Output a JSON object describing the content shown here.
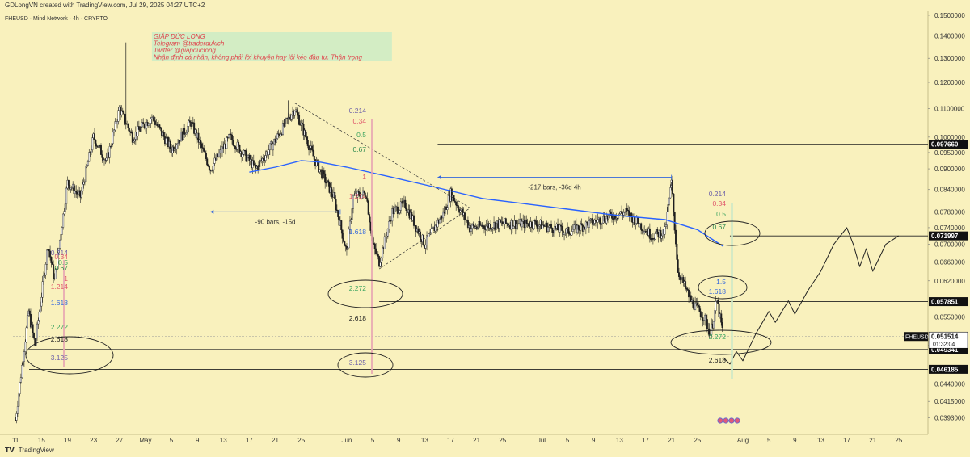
{
  "header": {
    "attribution": "GDLongVN created with TradingView.com, Jul 29, 2025 04:27 UTC+2",
    "symbol_line": "FHEUSD · Mind Network · 4h · CRYPTO"
  },
  "footer": {
    "brand": "TradingView"
  },
  "colors": {
    "background": "#f9f1bd",
    "candle_up": "#1f1f1f",
    "candle_down": "#1f1f1f",
    "ma_line": "#2962ff",
    "fib_red": "#e0576b",
    "fib_green": "#3aa35f",
    "fib_blue": "#3366dd",
    "price_tag_bg": "#111111",
    "price_tag_text": "#ffffff"
  },
  "annotation_box": {
    "lines": [
      "GIÁP ĐỨC LONG",
      "Telegram @traderdukich",
      "Twitter @giapduclong",
      "Nhận định cá nhân, không phải lời khuyên hay lôi kéo đầu tư. Thận trọng"
    ]
  },
  "measure_labels": {
    "first": "-90 bars, -15d",
    "second": "-217 bars, -36d 4h"
  },
  "fib_groups": [
    {
      "id": "left",
      "labels": [
        "0.214",
        "0.34",
        "0.5",
        "0.67",
        "1",
        "1.214",
        "1.618",
        "2.272",
        "2.618",
        "3.125"
      ]
    },
    {
      "id": "middle",
      "labels": [
        "0.214",
        "0.34",
        "0.5",
        "0.67",
        "1",
        "1.214",
        "1.618",
        "2.272",
        "2.618",
        "3.125"
      ]
    },
    {
      "id": "right",
      "labels": [
        "0.214",
        "0.34",
        "0.5",
        "0.67",
        "1.5",
        "1.618",
        "2.272",
        "2.618"
      ]
    }
  ],
  "chart_data": {
    "type": "candlestick",
    "symbol": "FHEUSD",
    "exchange": "Mind Network",
    "timeframe": "4h",
    "x_ticks": [
      "11",
      "15",
      "19",
      "23",
      "27",
      "May",
      "5",
      "9",
      "13",
      "17",
      "21",
      "25",
      "Jun",
      "5",
      "9",
      "13",
      "17",
      "21",
      "25",
      "Jul",
      "5",
      "9",
      "13",
      "17",
      "21",
      "25",
      "Aug",
      "5",
      "9",
      "13",
      "17",
      "21",
      "25"
    ],
    "y_ticks": [
      0.15,
      0.14,
      0.13,
      0.12,
      0.11,
      0.1,
      0.095,
      0.09,
      0.084,
      0.078,
      0.074,
      0.07,
      0.066,
      0.062,
      0.055,
      0.05,
      0.044,
      0.0415,
      0.0393
    ],
    "y_range": [
      0.038,
      0.152
    ],
    "scale": "log",
    "price_levels": [
      {
        "value": 0.09766,
        "label": "0.097660"
      },
      {
        "value": 0.071997,
        "label": "0.071997"
      },
      {
        "value": 0.057851,
        "label": "0.057851"
      },
      {
        "value": 0.049341,
        "label": "0.049341"
      },
      {
        "value": 0.046185,
        "label": "0.046185"
      }
    ],
    "current": {
      "symbol": "FHEUSD",
      "price": "0.051514",
      "countdown": "01:32:04"
    },
    "price_path": [
      [
        "Apr 11",
        0.039
      ],
      [
        "Apr 13",
        0.056
      ],
      [
        "Apr 14",
        0.05
      ],
      [
        "Apr 16",
        0.07
      ],
      [
        "Apr 17",
        0.062
      ],
      [
        "Apr 19",
        0.086
      ],
      [
        "Apr 21",
        0.082
      ],
      [
        "Apr 23",
        0.1
      ],
      [
        "Apr 25",
        0.092
      ],
      [
        "Apr 27",
        0.11
      ],
      [
        "Apr 29",
        0.1
      ],
      [
        "May 2",
        0.107
      ],
      [
        "May 5",
        0.096
      ],
      [
        "May 8",
        0.105
      ],
      [
        "May 11",
        0.09
      ],
      [
        "May 14",
        0.1
      ],
      [
        "May 18",
        0.09
      ],
      [
        "May 21",
        0.099
      ],
      [
        "May 24",
        0.11
      ],
      [
        "May 27",
        0.093
      ],
      [
        "May 30",
        0.082
      ],
      [
        "Jun 1",
        0.068
      ],
      [
        "Jun 2",
        0.082
      ],
      [
        "Jun 4",
        0.083
      ],
      [
        "Jun 5",
        0.07
      ],
      [
        "Jun 6",
        0.066
      ],
      [
        "Jun 8",
        0.078
      ],
      [
        "Jun 10",
        0.08
      ],
      [
        "Jun 13",
        0.07
      ],
      [
        "Jun 16",
        0.078
      ],
      [
        "Jun 17",
        0.083
      ],
      [
        "Jun 20",
        0.074
      ],
      [
        "Jun 25",
        0.075
      ],
      [
        "Jun 30",
        0.075
      ],
      [
        "Jul 5",
        0.073
      ],
      [
        "Jul 10",
        0.076
      ],
      [
        "Jul 14",
        0.078
      ],
      [
        "Jul 18",
        0.072
      ],
      [
        "Jul 20",
        0.073
      ],
      [
        "Jul 21",
        0.086
      ],
      [
        "Jul 22",
        0.064
      ],
      [
        "Jul 24",
        0.058
      ],
      [
        "Jul 26",
        0.055
      ],
      [
        "Jul 27",
        0.052
      ],
      [
        "Jul 28",
        0.058
      ],
      [
        "Jul 29",
        0.0515
      ]
    ],
    "ma_path": [
      [
        "May 17",
        0.089
      ],
      [
        "May 21",
        0.0905
      ],
      [
        "May 25",
        0.0925
      ],
      [
        "May 28",
        0.092
      ],
      [
        "Jun 1",
        0.0905
      ],
      [
        "Jun 8",
        0.0875
      ],
      [
        "Jun 15",
        0.0845
      ],
      [
        "Jun 22",
        0.0815
      ],
      [
        "Jun 29",
        0.08
      ],
      [
        "Jul 6",
        0.0785
      ],
      [
        "Jul 13",
        0.077
      ],
      [
        "Jul 20",
        0.076
      ],
      [
        "Jul 25",
        0.0735
      ],
      [
        "Jul 29",
        0.0695
      ]
    ],
    "projection_path": [
      [
        "Jul 29",
        0.048
      ],
      [
        "Jul 30",
        0.047
      ],
      [
        "Jul 31",
        0.049
      ],
      [
        "Aug 1",
        0.0475
      ],
      [
        "Aug 3",
        0.052
      ],
      [
        "Aug 5",
        0.056
      ],
      [
        "Aug 6",
        0.054
      ],
      [
        "Aug 8",
        0.058
      ],
      [
        "Aug 9",
        0.0555
      ],
      [
        "Aug 11",
        0.06
      ],
      [
        "Aug 13",
        0.064
      ],
      [
        "Aug 15",
        0.07
      ],
      [
        "Aug 17",
        0.074
      ],
      [
        "Aug 18",
        0.07
      ],
      [
        "Aug 19",
        0.065
      ],
      [
        "Aug 20",
        0.069
      ],
      [
        "Aug 21",
        0.064
      ],
      [
        "Aug 23",
        0.07
      ],
      [
        "Aug 25",
        0.072
      ]
    ]
  }
}
